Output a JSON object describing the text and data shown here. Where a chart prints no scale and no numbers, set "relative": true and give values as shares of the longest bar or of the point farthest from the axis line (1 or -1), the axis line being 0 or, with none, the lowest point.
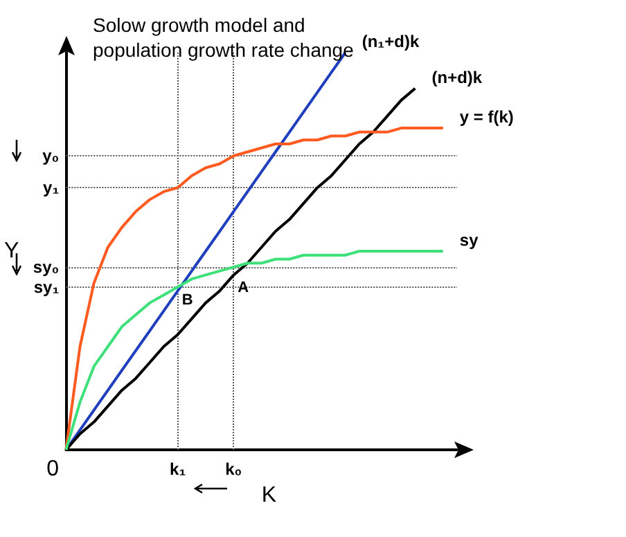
{
  "chart_data": {
    "type": "line",
    "title": "Solow growth model and population growth rate change",
    "xlabel": "K",
    "ylabel": "Y",
    "relative": true,
    "grid": false,
    "legend": false,
    "marker": "none",
    "line_style": "solid",
    "categories": [
      null,
      null,
      null,
      null,
      null,
      null,
      null,
      null,
      "k₁",
      null,
      null,
      null,
      "k₀",
      null,
      null,
      null,
      null,
      null,
      null,
      null,
      null,
      null,
      null,
      null,
      null,
      null,
      null,
      null,
      null
    ],
    "series": [
      {
        "name": "(n₁+d)k",
        "color": "#1f3fbf",
        "values": [
          0,
          0.05,
          0.1,
          0.15,
          0.2,
          0.25,
          0.3,
          0.35,
          0.4,
          0.45,
          0.5,
          0.55,
          0.6,
          0.65,
          0.7,
          0.75,
          0.8,
          0.85,
          0.9,
          0.95,
          1,
          null,
          null,
          null,
          null,
          null,
          null,
          null,
          null
        ]
      },
      {
        "name": "(n+d)k",
        "color": "#000000",
        "values": [
          0,
          0.04,
          0.07,
          0.11,
          0.15,
          0.18,
          0.22,
          0.26,
          0.29,
          0.33,
          0.37,
          0.4,
          0.44,
          0.47,
          0.51,
          0.55,
          0.58,
          0.62,
          0.66,
          0.69,
          0.73,
          0.77,
          0.8,
          0.84,
          0.88,
          0.91,
          null,
          null,
          null
        ]
      },
      {
        "name": "y = f(k)",
        "color": "#ff5a1f",
        "values": [
          0,
          0.26,
          0.42,
          0.51,
          0.56,
          0.6,
          0.63,
          0.65,
          0.66,
          0.69,
          0.71,
          0.72,
          0.74,
          0.75,
          0.76,
          0.77,
          0.77,
          0.78,
          0.78,
          0.79,
          0.79,
          0.8,
          0.8,
          0.8,
          0.81,
          0.81,
          0.81,
          0.81,
          null
        ]
      },
      {
        "name": "sy",
        "color": "#3ee07a",
        "values": [
          0,
          0.12,
          0.21,
          0.26,
          0.31,
          0.34,
          0.37,
          0.39,
          0.41,
          0.43,
          0.44,
          0.45,
          0.46,
          0.47,
          0.47,
          0.48,
          0.48,
          0.49,
          0.49,
          0.49,
          0.49,
          0.5,
          0.5,
          0.5,
          0.5,
          0.5,
          0.5,
          0.5,
          null
        ]
      }
    ],
    "ref_lines": [
      {
        "axis": "y",
        "value": 0.74,
        "label": "y₀",
        "color": "#555555",
        "line_style": "dotted"
      },
      {
        "axis": "y",
        "value": 0.66,
        "label": "y₁",
        "color": "#555555",
        "line_style": "dotted"
      },
      {
        "axis": "y",
        "value": 0.46,
        "label": "sy₀",
        "color": "#555555",
        "line_style": "dotted"
      },
      {
        "axis": "y",
        "value": 0.41,
        "label": "sy₁",
        "color": "#555555",
        "line_style": "dotted"
      },
      {
        "axis": "x",
        "value": "k₁",
        "color": "#555555",
        "line_style": "dotted"
      },
      {
        "axis": "x",
        "value": "k₀",
        "color": "#555555",
        "line_style": "dotted"
      }
    ],
    "annotations": [
      {
        "text": "B",
        "x": "k₁",
        "y": 0.41
      },
      {
        "text": "A",
        "x": "k₀",
        "y": 0.44
      },
      "0"
    ]
  }
}
